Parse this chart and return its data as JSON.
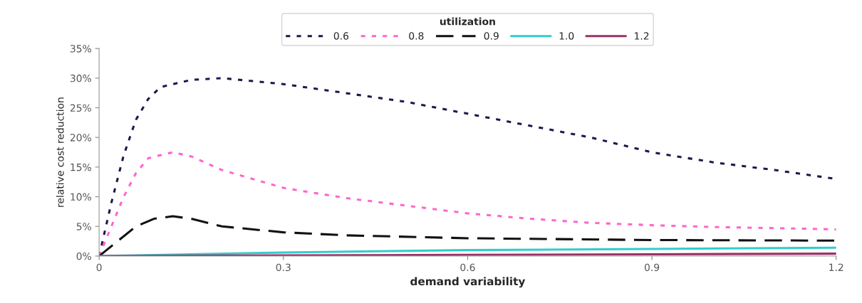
{
  "chart_data": {
    "type": "line",
    "xlabel": "demand variability",
    "ylabel": "relative cost reduction",
    "legend_title": "utilization",
    "legend": "top",
    "grid": false,
    "marker": "none",
    "xlim": [
      0,
      1.2
    ],
    "xticks": [
      {
        "value": 0,
        "label": "0"
      },
      0.3,
      0.6,
      0.9,
      1.2
    ],
    "ylim": [
      0,
      35
    ],
    "yticks": [
      {
        "value": 0,
        "label": "0%"
      },
      {
        "value": 5,
        "label": "5%"
      },
      {
        "value": 10,
        "label": "10%"
      },
      {
        "value": 15,
        "label": "15%"
      },
      {
        "value": 20,
        "label": "20%"
      },
      {
        "value": 25,
        "label": "25%"
      },
      {
        "value": 30,
        "label": "30%"
      },
      {
        "value": 35,
        "label": "35%"
      }
    ],
    "series": [
      {
        "name": "0.6",
        "color": "#1a1a4e",
        "line_style": "dotted",
        "x": [
          0,
          0.02,
          0.04,
          0.06,
          0.08,
          0.1,
          0.15,
          0.2,
          0.3,
          0.4,
          0.5,
          0.6,
          0.7,
          0.8,
          0.9,
          1.0,
          1.1,
          1.2
        ],
        "values": [
          0,
          9,
          17,
          23,
          26.5,
          28.5,
          29.7,
          30,
          29,
          27.5,
          26,
          24,
          22,
          20,
          17.5,
          15.8,
          14.5,
          13
        ]
      },
      {
        "name": "0.8",
        "color": "#ff66cc",
        "line_style": "dotted",
        "x": [
          0,
          0.02,
          0.04,
          0.06,
          0.08,
          0.12,
          0.15,
          0.2,
          0.3,
          0.4,
          0.5,
          0.6,
          0.7,
          0.8,
          0.9,
          1.0,
          1.1,
          1.2
        ],
        "values": [
          0,
          5,
          10,
          14,
          16.5,
          17.5,
          16.8,
          14.5,
          11.5,
          9.8,
          8.5,
          7.2,
          6.3,
          5.6,
          5.2,
          4.9,
          4.7,
          4.5
        ]
      },
      {
        "name": "0.9",
        "color": "#111111",
        "line_style": "dashed",
        "x": [
          0,
          0.03,
          0.06,
          0.09,
          0.12,
          0.15,
          0.2,
          0.3,
          0.4,
          0.6,
          0.9,
          1.2
        ],
        "values": [
          0,
          2.5,
          5,
          6.3,
          6.7,
          6.3,
          5,
          4,
          3.5,
          3,
          2.7,
          2.6
        ]
      },
      {
        "name": "1.0",
        "color": "#33cccc",
        "line_style": "solid",
        "x": [
          0,
          0.3,
          0.6,
          0.9,
          1.2
        ],
        "values": [
          0,
          0.6,
          1,
          1.2,
          1.4
        ]
      },
      {
        "name": "1.2",
        "color": "#993366",
        "line_style": "solid",
        "x": [
          0,
          0.3,
          0.6,
          0.9,
          1.2
        ],
        "values": [
          0,
          0.1,
          0.2,
          0.3,
          0.4
        ]
      }
    ]
  }
}
